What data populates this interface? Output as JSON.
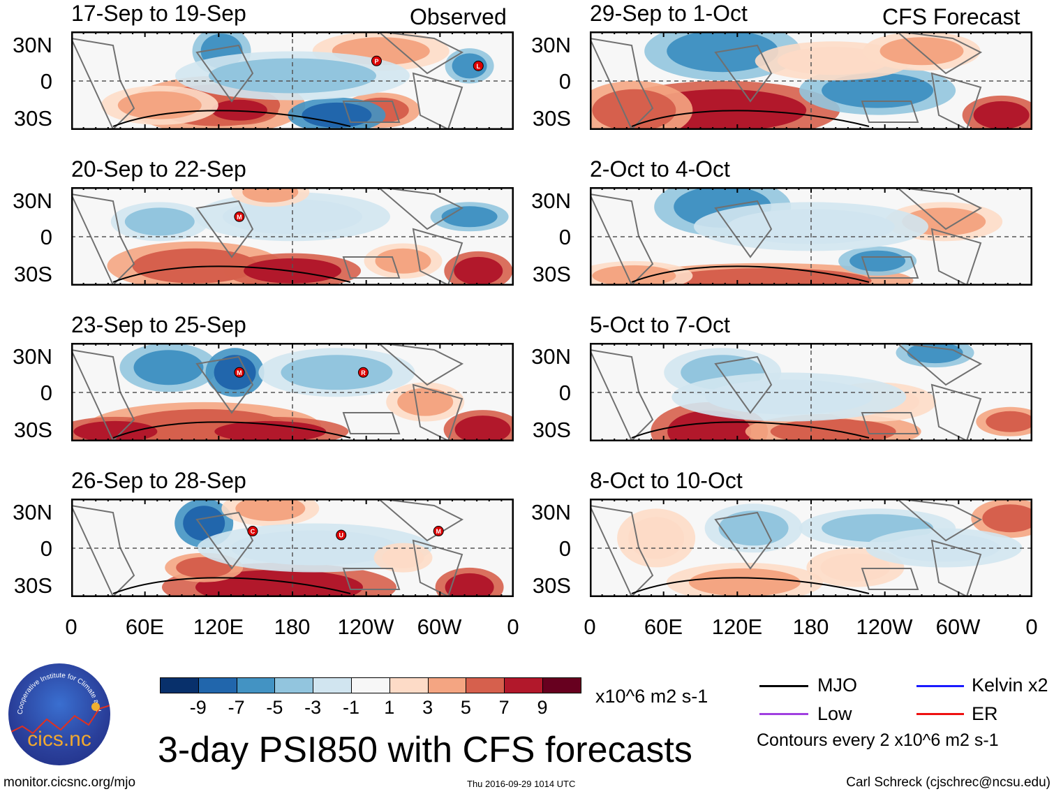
{
  "left_column": {
    "label": "Observed",
    "panels": [
      {
        "title": "17-Sep to 19-Sep",
        "storms": [
          "P",
          "L"
        ]
      },
      {
        "title": "20-Sep to 22-Sep",
        "storms": [
          "M"
        ]
      },
      {
        "title": "23-Sep to 25-Sep",
        "storms": [
          "M",
          "R"
        ]
      },
      {
        "title": "26-Sep to 28-Sep",
        "storms": [
          "C",
          "U",
          "M"
        ]
      }
    ]
  },
  "right_column": {
    "label": "CFS Forecast",
    "panels": [
      {
        "title": "29-Sep to 1-Oct"
      },
      {
        "title": "2-Oct to 4-Oct"
      },
      {
        "title": "5-Oct to 7-Oct"
      },
      {
        "title": "8-Oct to 10-Oct"
      }
    ]
  },
  "lat_labels": [
    "30N",
    "0",
    "30S"
  ],
  "lon_labels": [
    "0",
    "60E",
    "120E",
    "180",
    "120W",
    "60W",
    "0"
  ],
  "colorbar": {
    "colors": [
      "#08306b",
      "#2166ac",
      "#4393c3",
      "#92c5de",
      "#d1e5f0",
      "#f7f7f7",
      "#fddbc7",
      "#f4a582",
      "#d6604d",
      "#b2182b",
      "#67001f"
    ],
    "labels": [
      "-9",
      "-7",
      "-5",
      "-3",
      "-1",
      "1",
      "3",
      "5",
      "7",
      "9"
    ],
    "units": "x10^6 m2 s-1"
  },
  "legend": {
    "items": [
      {
        "label": "MJO",
        "color": "#000000"
      },
      {
        "label": "Kelvin x2",
        "color": "#1a1aff"
      },
      {
        "label": "Low",
        "color": "#a040e0"
      },
      {
        "label": "ER",
        "color": "#ee1111"
      }
    ],
    "contour_note": "Contours every 2 x10^6 m2 s-1"
  },
  "logo_text": "cics.nc",
  "logo_ring_text": "Cooperative Institute for Climate and Satellites",
  "main_title": "3-day PSI850 with CFS forecasts",
  "footer": {
    "url": "monitor.cicsnc.org/mjo",
    "timestamp": "Thu 2016-09-29 1014 UTC",
    "author": "Carl Schreck (cjschrec@ncsu.edu)"
  }
}
